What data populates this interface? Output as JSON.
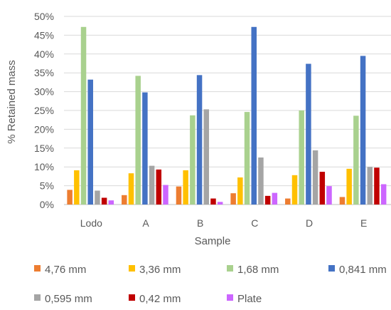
{
  "chart_data": {
    "type": "bar",
    "title": "",
    "xlabel": "Sample",
    "ylabel": "% Retained mass",
    "ylim": [
      0,
      50
    ],
    "yticks": [
      "0%",
      "5%",
      "10%",
      "15%",
      "20%",
      "25%",
      "30%",
      "35%",
      "40%",
      "45%",
      "50%"
    ],
    "grid": true,
    "legend_position": "bottom",
    "categories": [
      "Lodo",
      "A",
      "B",
      "C",
      "D",
      "E"
    ],
    "series": [
      {
        "name": "4,76 mm",
        "color": "#ED7D31",
        "values": [
          3.9,
          2.5,
          4.8,
          3.0,
          1.6,
          2.0
        ]
      },
      {
        "name": "3,36 mm",
        "color": "#FFC000",
        "values": [
          9.1,
          8.3,
          9.1,
          7.2,
          7.8,
          9.5
        ]
      },
      {
        "name": "1,68 mm",
        "color": "#A9D18E",
        "values": [
          47.2,
          34.2,
          23.7,
          24.6,
          25.0,
          23.6
        ]
      },
      {
        "name": "0,841 mm",
        "color": "#4472C4",
        "values": [
          33.2,
          29.8,
          34.4,
          47.2,
          37.4,
          39.5
        ]
      },
      {
        "name": "0,595 mm",
        "color": "#A5A5A5",
        "values": [
          3.7,
          10.3,
          25.3,
          12.5,
          14.4,
          10.0
        ]
      },
      {
        "name": "0,42 mm",
        "color": "#C00000",
        "values": [
          1.8,
          9.3,
          1.6,
          2.3,
          8.7,
          9.8
        ]
      },
      {
        "name": "Plate",
        "color": "#CC66FF",
        "values": [
          1.1,
          5.2,
          0.7,
          3.1,
          4.9,
          5.4
        ]
      }
    ]
  }
}
